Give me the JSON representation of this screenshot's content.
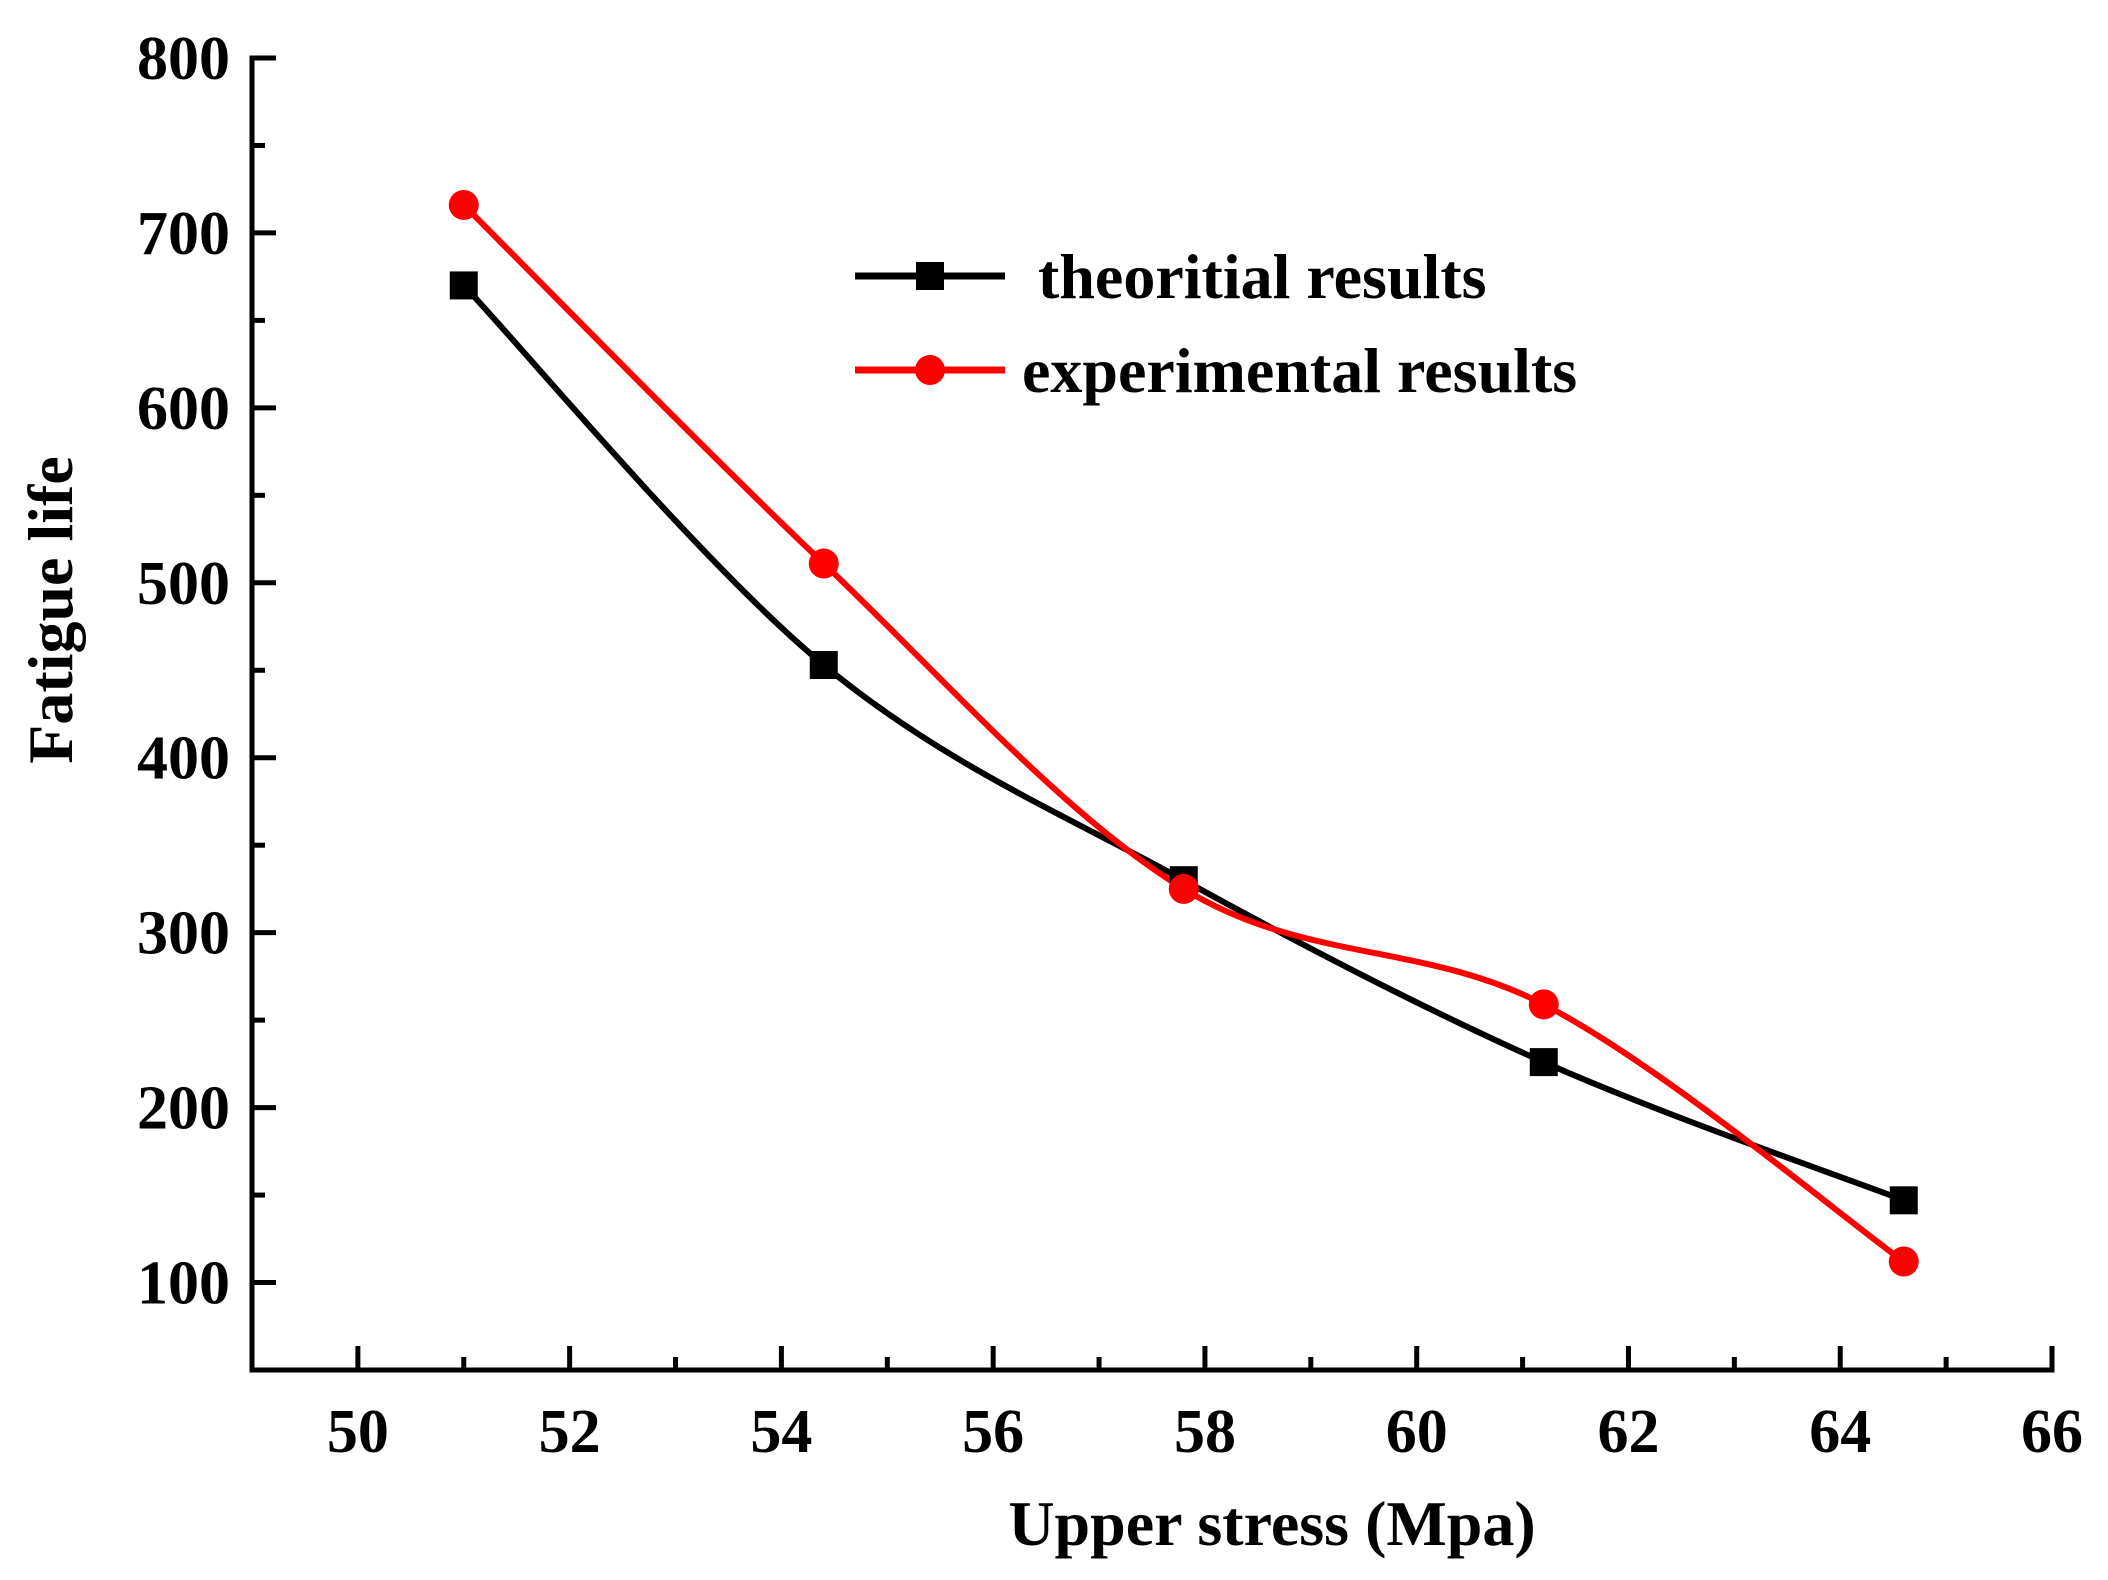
{
  "chart_data": {
    "type": "line",
    "title": "",
    "xlabel": "Upper stress (Mpa)",
    "ylabel": "Fatigue life",
    "xlim": [
      49,
      66
    ],
    "ylim": [
      50,
      800
    ],
    "x_ticks": [
      50,
      52,
      54,
      56,
      58,
      60,
      62,
      64,
      66
    ],
    "y_ticks": [
      100,
      200,
      300,
      400,
      500,
      600,
      700,
      800
    ],
    "x_tick_labels": [
      "50",
      "52",
      "54",
      "56",
      "58",
      "60",
      "62",
      "64",
      "66"
    ],
    "y_tick_labels": [
      "100",
      "200",
      "300",
      "400",
      "500",
      "600",
      "700",
      "800"
    ],
    "legend_position": "top-right",
    "smooth": true,
    "series": [
      {
        "name": "theoritial results",
        "color": "#000000",
        "marker": "square",
        "x": [
          51.0,
          54.4,
          57.8,
          61.2,
          64.6
        ],
        "y": [
          670,
          453,
          330,
          226,
          147
        ]
      },
      {
        "name": "experimental results",
        "color": "#ff0000",
        "marker": "circle",
        "x": [
          51.0,
          54.4,
          57.8,
          61.2,
          64.6
        ],
        "y": [
          716,
          511,
          325,
          259,
          112
        ]
      }
    ]
  }
}
